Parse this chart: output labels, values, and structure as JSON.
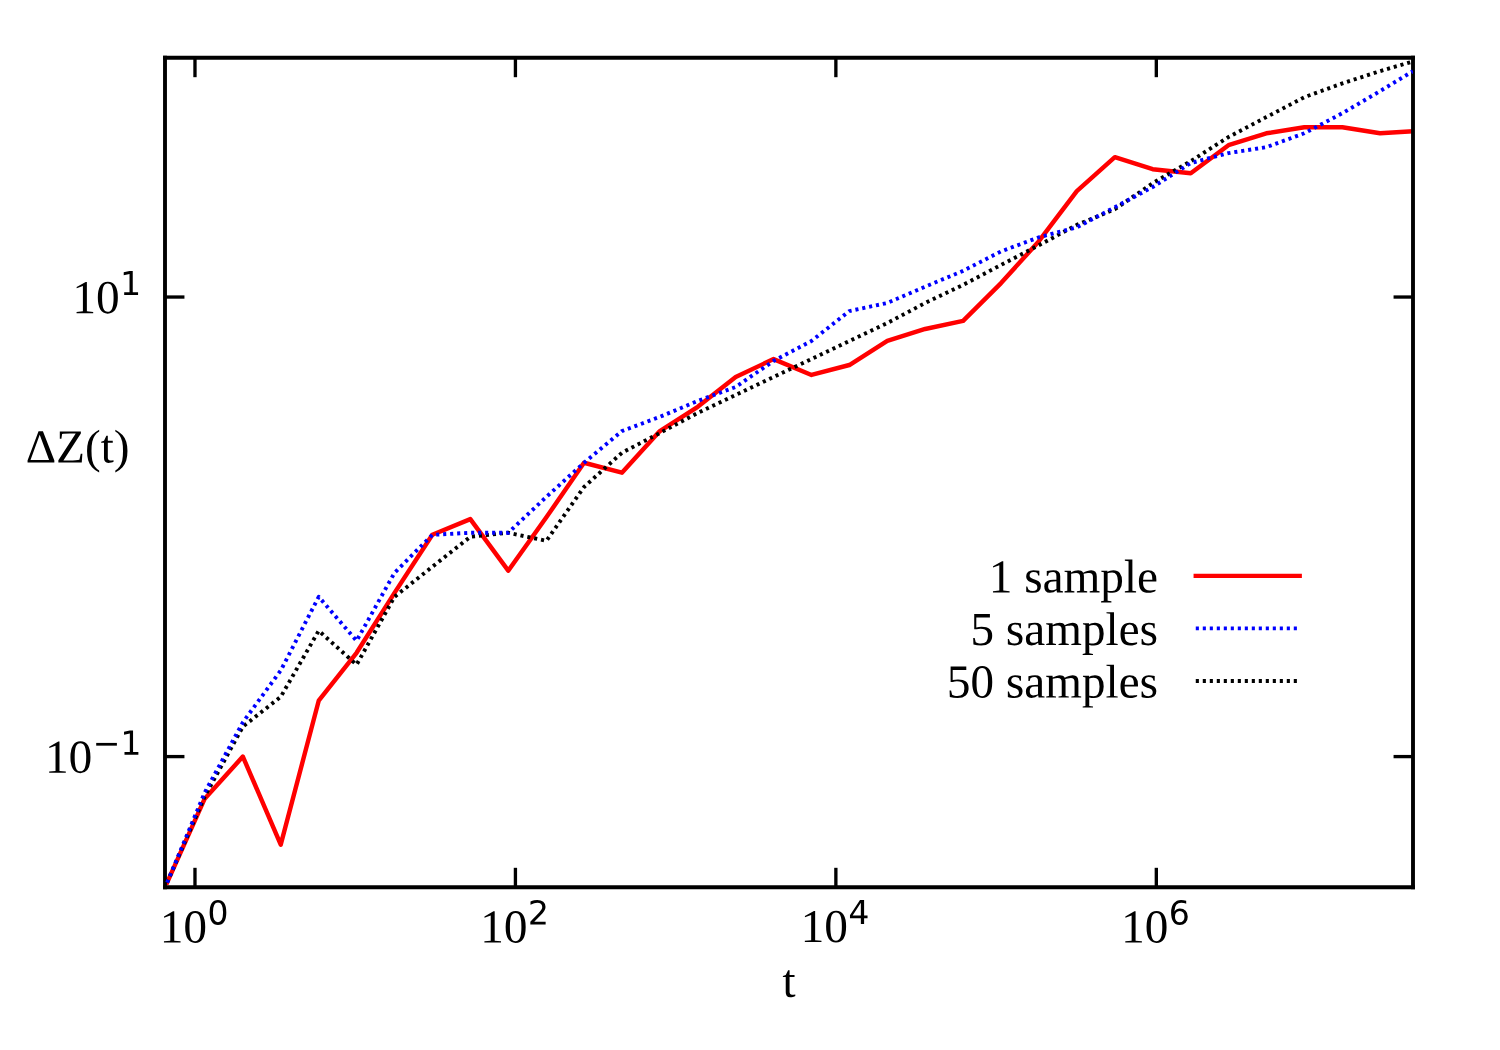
{
  "chart_data": {
    "type": "line",
    "xlabel": "t",
    "ylabel": "ΔZ(t)",
    "log": "xy",
    "grid": false,
    "legend": "bottom right",
    "xlim": [
      0.65,
      40000000.0
    ],
    "ylim": [
      0.027,
      110
    ],
    "xticks": [
      {
        "value": 1,
        "label": "10$^{0}$"
      },
      {
        "value": 100,
        "label": "10$^{2}$"
      },
      {
        "value": 10000,
        "label": "10$^{4}$"
      },
      {
        "value": 1000000,
        "label": "10$^{6}$"
      }
    ],
    "yticks": [
      {
        "value": 0.1,
        "label": "10$^{−1}$"
      },
      {
        "value": 10,
        "label": "10$^{1}$"
      }
    ],
    "x": [
      0.67,
      1.15,
      1.99,
      3.43,
      5.92,
      10.2,
      17.6,
      30.3,
      52.3,
      90.2,
      156,
      268,
      462,
      797,
      1374,
      2370,
      4085,
      7045,
      12140,
      20940,
      36100,
      62250,
      107400,
      185000,
      319000,
      551000,
      949000,
      1640000,
      2820000,
      4860000,
      8390000,
      14500000,
      24900000,
      40000000
    ],
    "series": [
      {
        "name": "1 sample",
        "color": "#ff0000",
        "line_style": "solid",
        "values": [
          0.0283,
          0.0656,
          0.1,
          0.0414,
          0.175,
          0.283,
          0.516,
          0.923,
          1.08,
          0.644,
          1.1,
          1.9,
          1.72,
          2.61,
          3.33,
          4.49,
          5.37,
          4.58,
          5.06,
          6.44,
          7.26,
          7.87,
          11.5,
          17.5,
          28.9,
          40.6,
          36.0,
          34.6,
          45.8,
          51.6,
          54.8,
          54.8,
          51.6,
          52.7
        ]
      },
      {
        "name": "5 samples",
        "color": "#0000ff",
        "line_style": "dotted",
        "values": [
          0.0283,
          0.0697,
          0.141,
          0.237,
          0.496,
          0.319,
          0.631,
          0.923,
          0.942,
          0.942,
          1.35,
          1.9,
          2.61,
          3.01,
          3.53,
          4.06,
          5.27,
          6.44,
          8.69,
          9.42,
          11.1,
          13.0,
          15.8,
          18.2,
          20.1,
          24.6,
          30.1,
          38.3,
          42.3,
          44.9,
          51.6,
          63.1,
          78.7,
          96.2
        ]
      },
      {
        "name": "50 samples",
        "color": "#000000",
        "line_style": "dotted",
        "values": [
          0.0283,
          0.067,
          0.135,
          0.182,
          0.353,
          0.251,
          0.496,
          0.67,
          0.905,
          0.942,
          0.869,
          1.49,
          2.1,
          2.56,
          3.13,
          3.75,
          4.49,
          5.37,
          6.44,
          7.71,
          9.42,
          11.3,
          13.8,
          16.8,
          20.6,
          24.1,
          31.3,
          39.0,
          49.7,
          60.7,
          74.1,
          85.1,
          96.2,
          106
        ]
      }
    ]
  }
}
